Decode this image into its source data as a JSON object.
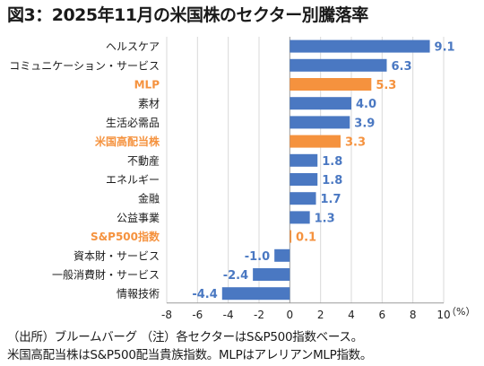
{
  "title": "図3：2025年11月の米国株のセクター別騰落率",
  "footer": {
    "line1": "（出所）ブルームバーグ （注）各セクターはS&P500指数ベース。",
    "line2": "米国高配当株はS&P500配当貴族指数。MLPはアレリアンMLP指数。"
  },
  "colors": {
    "blue": "#4a78c2",
    "orange": "#f5923e"
  },
  "chart_data": {
    "type": "bar",
    "orientation": "horizontal",
    "categories": [
      "ヘルスケア",
      "コミュニケーション・サービス",
      "MLP",
      "素材",
      "生活必需品",
      "米国高配当株",
      "不動産",
      "エネルギー",
      "金融",
      "公益事業",
      "S&P500指数",
      "資本財・サービス",
      "一般消費財・サービス",
      "情報技術"
    ],
    "values": [
      9.1,
      6.3,
      5.3,
      4.0,
      3.9,
      3.3,
      1.8,
      1.8,
      1.7,
      1.3,
      0.1,
      -1.0,
      -2.4,
      -4.4
    ],
    "value_labels": [
      "9.1",
      "6.3",
      "5.3",
      "4.0",
      "3.9",
      "3.3",
      "1.8",
      "1.8",
      "1.7",
      "1.3",
      "0.1",
      "-1.0",
      "-2.4",
      "-4.4"
    ],
    "highlight": [
      false,
      false,
      true,
      false,
      false,
      true,
      false,
      false,
      false,
      false,
      true,
      false,
      false,
      false
    ],
    "xlim": [
      -8,
      10
    ],
    "xticks": [
      -8,
      -6,
      -4,
      -2,
      0,
      2,
      4,
      6,
      8,
      10
    ],
    "xunit": "（%）",
    "grid": true
  }
}
